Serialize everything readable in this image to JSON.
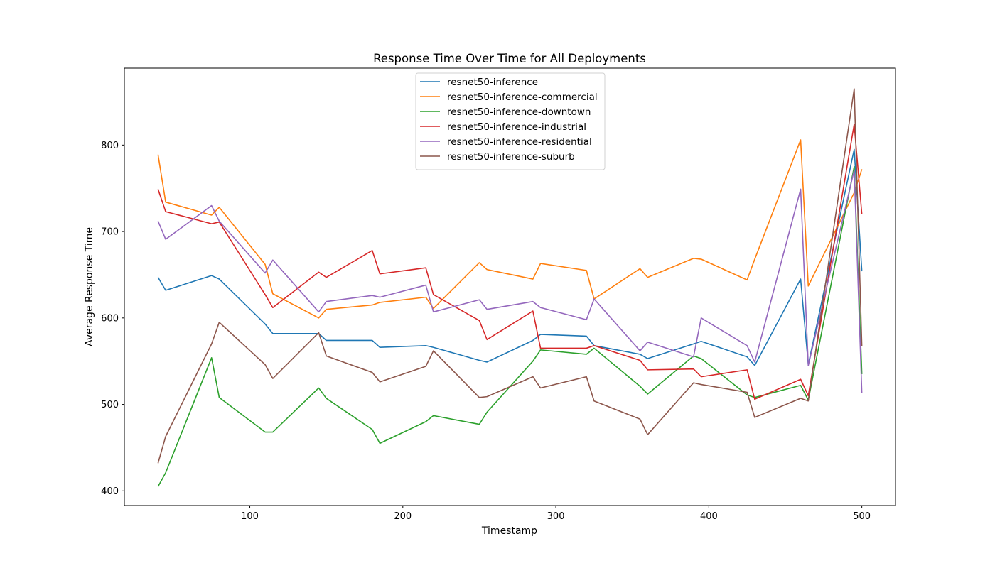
{
  "chart_data": {
    "type": "line",
    "title": "Response Time Over Time for All Deployments",
    "xlabel": "Timestamp",
    "ylabel": "Average Response Time",
    "xlim": [
      18,
      522
    ],
    "ylim": [
      383,
      889
    ],
    "xticks": [
      100,
      200,
      300,
      400,
      500
    ],
    "yticks": [
      400,
      500,
      600,
      700,
      800
    ],
    "grid": false,
    "legend_position": "upper center",
    "x": [
      40,
      45,
      75,
      80,
      110,
      115,
      145,
      150,
      180,
      185,
      215,
      220,
      250,
      255,
      285,
      290,
      320,
      325,
      355,
      360,
      390,
      395,
      425,
      430,
      460,
      465,
      495,
      500
    ],
    "series": [
      {
        "name": "resnet50-inference",
        "color": "#1f77b4",
        "values": [
          647,
          632,
          649,
          645,
          593,
          582,
          582,
          574,
          574,
          566,
          568,
          566,
          551,
          549,
          574,
          581,
          579,
          568,
          558,
          553,
          570,
          573,
          555,
          545,
          645,
          546,
          795,
          654
        ]
      },
      {
        "name": "resnet50-inference-commercial",
        "color": "#ff7f0e",
        "values": [
          789,
          734,
          719,
          728,
          662,
          628,
          600,
          610,
          615,
          618,
          624,
          611,
          664,
          656,
          645,
          663,
          655,
          622,
          657,
          647,
          669,
          668,
          644,
          668,
          806,
          637,
          745,
          772
        ]
      },
      {
        "name": "resnet50-inference-downtown",
        "color": "#2ca02c",
        "values": [
          405,
          421,
          554,
          508,
          468,
          468,
          519,
          507,
          471,
          455,
          480,
          487,
          477,
          491,
          550,
          563,
          558,
          565,
          521,
          512,
          556,
          553,
          511,
          508,
          522,
          505,
          775,
          535
        ]
      },
      {
        "name": "resnet50-inference-industrial",
        "color": "#d62728",
        "values": [
          749,
          723,
          709,
          711,
          627,
          612,
          653,
          647,
          678,
          651,
          658,
          627,
          597,
          575,
          608,
          565,
          565,
          568,
          551,
          540,
          541,
          532,
          540,
          506,
          529,
          510,
          824,
          720
        ]
      },
      {
        "name": "resnet50-inference-residential",
        "color": "#9467bd",
        "values": [
          712,
          691,
          730,
          712,
          652,
          667,
          607,
          619,
          626,
          624,
          638,
          607,
          621,
          610,
          619,
          612,
          598,
          622,
          562,
          572,
          555,
          600,
          568,
          549,
          749,
          545,
          771,
          513
        ]
      },
      {
        "name": "resnet50-inference-suburb",
        "color": "#8c564b",
        "values": [
          432,
          463,
          570,
          595,
          546,
          530,
          583,
          556,
          537,
          526,
          544,
          562,
          508,
          509,
          532,
          519,
          532,
          504,
          483,
          465,
          525,
          523,
          514,
          485,
          507,
          504,
          865,
          567
        ]
      }
    ]
  }
}
